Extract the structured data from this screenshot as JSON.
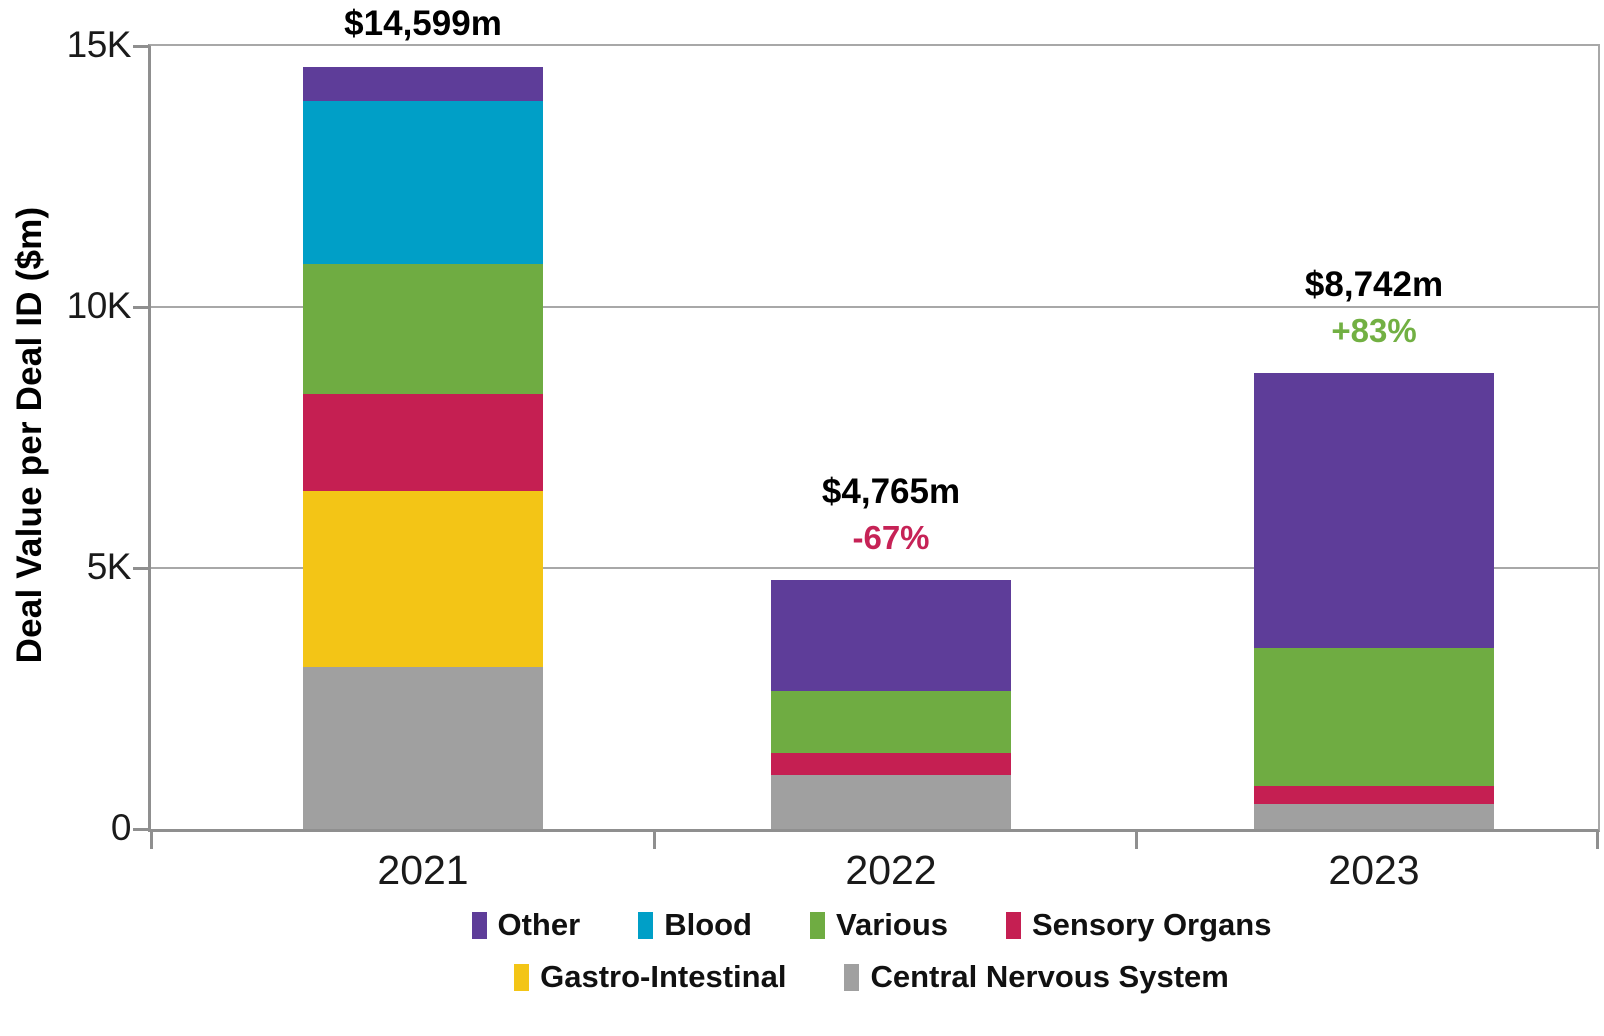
{
  "chart_data": {
    "type": "bar",
    "stacked": true,
    "ylabel": "Deal Value per Deal ID ($m)",
    "categories": [
      "2021",
      "2022",
      "2023"
    ],
    "ylim": [
      0,
      15000
    ],
    "grid": true,
    "axis_color": "#8f8f8f",
    "grid_color": "#a8a8a8",
    "y_axis_ticks": [
      {
        "label": "15K",
        "value": 15000
      },
      {
        "label": "10K",
        "value": 10000
      },
      {
        "label": "5K",
        "value": 5000
      },
      {
        "label": "0",
        "value": 0
      }
    ],
    "series": [
      {
        "name": "Central Nervous System",
        "color": "#a0a0a0",
        "values": [
          3109,
          1040,
          482
        ]
      },
      {
        "name": "Gastro-Intestinal",
        "color": "#f3c516",
        "values": [
          3360,
          0,
          0
        ]
      },
      {
        "name": "Sensory Organs",
        "color": "#c51f52",
        "values": [
          1860,
          415,
          335
        ]
      },
      {
        "name": "Various",
        "color": "#6fac42",
        "values": [
          2500,
          1180,
          2645
        ]
      },
      {
        "name": "Blood",
        "color": "#009fc7",
        "values": [
          3120,
          0,
          0
        ]
      },
      {
        "name": "Other",
        "color": "#5e3d99",
        "values": [
          650,
          2130,
          5280
        ]
      }
    ],
    "annotations": [
      {
        "category": "2021",
        "total": "$14,599m",
        "pct": null,
        "pct_color": null
      },
      {
        "category": "2022",
        "total": "$4,765m",
        "pct": "-67%",
        "pct_color": "#c62256"
      },
      {
        "category": "2023",
        "total": "$8,742m",
        "pct": "+83%",
        "pct_color": "#72b043"
      }
    ],
    "legend_rows": [
      [
        "Other",
        "Blood",
        "Various",
        "Sensory Organs"
      ],
      [
        "Gastro-Intestinal",
        "Central Nervous System"
      ]
    ],
    "legend_position": "bottom"
  }
}
